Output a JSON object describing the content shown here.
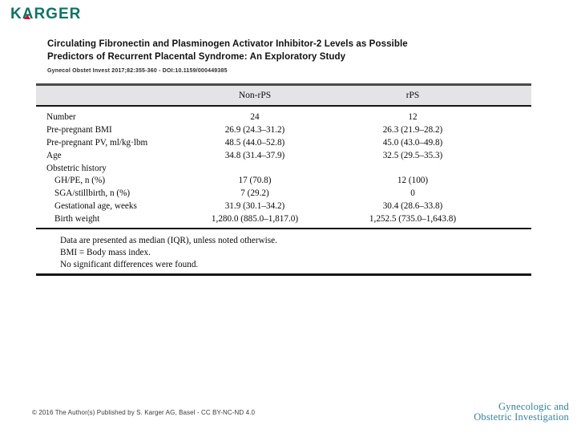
{
  "branding": {
    "karger_logo": "KARGER",
    "karger_color": "#0E7466",
    "karger_accent_color": "#C8102E",
    "journal_logo_line1": "Gynecologic and",
    "journal_logo_line2": "Obstetric Investigation",
    "journal_logo_color": "#35809E"
  },
  "header": {
    "title_line1": "Circulating Fibronectin and Plasminogen Activator Inhibitor-2 Levels as Possible",
    "title_line2": "Predictors of Recurrent Placental Syndrome: An Exploratory Study",
    "citation": "Gynecol Obstet Invest 2017;82:355-360 - DOI:10.1159/000449385"
  },
  "table": {
    "header_bg_color": "#E4E4E6",
    "columns": [
      "",
      "Non-rPS",
      "rPS"
    ],
    "rows": [
      {
        "label": "Number",
        "non_rps": "24",
        "rps": "12"
      },
      {
        "label": "Pre-pregnant BMI",
        "non_rps": "26.9 (24.3–31.2)",
        "rps": "26.3 (21.9–28.2)"
      },
      {
        "label": "Pre-pregnant PV, ml/kg·lbm",
        "non_rps": "48.5 (44.0–52.8)",
        "rps": "45.0 (43.0–49.8)"
      },
      {
        "label": "Age",
        "non_rps": "34.8 (31.4–37.9)",
        "rps": "32.5 (29.5–35.3)"
      },
      {
        "label": "Obstetric history",
        "non_rps": "",
        "rps": ""
      },
      {
        "label": "GH/PE, n (%)",
        "non_rps": "17 (70.8)",
        "rps": "12 (100)"
      },
      {
        "label": "SGA/stillbirth, n (%)",
        "non_rps": "7 (29.2)",
        "rps": "0"
      },
      {
        "label": "Gestational age, weeks",
        "non_rps": "31.9 (30.1–34.2)",
        "rps": "30.4 (28.6–33.8)"
      },
      {
        "label": "Birth weight",
        "non_rps": "1,280.0 (885.0–1,817.0)",
        "rps": "1,252.5 (735.0–1,643.8)"
      }
    ],
    "notes": [
      "Data are presented as median (IQR), unless noted otherwise.",
      "BMI = Body mass index.",
      "No significant differences were found."
    ]
  },
  "footer": {
    "copyright": "© 2016 The Author(s) Published by S. Karger AG, Basel - CC BY-NC-ND 4.0"
  }
}
